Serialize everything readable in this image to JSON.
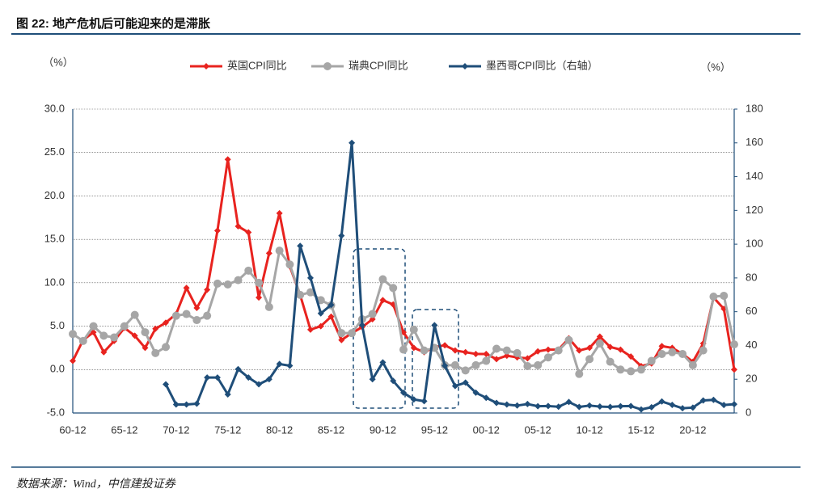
{
  "header": {
    "title": "图 22: 地产危机后可能迎来的是滞胀"
  },
  "footer": {
    "source": "数据来源：Wind，中信建投证券"
  },
  "chart_data": {
    "type": "line",
    "y_label": "（%）",
    "y2_label": "（%）",
    "categories": [
      "60-12",
      null,
      null,
      null,
      null,
      "65-12",
      null,
      null,
      null,
      null,
      "70-12",
      null,
      null,
      null,
      null,
      "75-12",
      null,
      null,
      null,
      null,
      "80-12",
      null,
      null,
      null,
      null,
      "85-12",
      null,
      null,
      null,
      null,
      "90-12",
      null,
      null,
      null,
      null,
      "95-12",
      null,
      null,
      null,
      null,
      "00-12",
      null,
      null,
      null,
      null,
      "05-12",
      null,
      null,
      null,
      null,
      "10-12",
      null,
      null,
      null,
      null,
      "15-12",
      null,
      null,
      null,
      null,
      "20-12",
      null,
      null,
      null,
      null
    ],
    "ylim": [
      -5,
      30
    ],
    "yticks": [
      {
        "value": -5,
        "label": "-5.0"
      },
      {
        "value": 0,
        "label": "0.0"
      },
      {
        "value": 5,
        "label": "5.0"
      },
      {
        "value": 10,
        "label": "10.0"
      },
      {
        "value": 15,
        "label": "15.0"
      },
      {
        "value": 20,
        "label": "20.0"
      },
      {
        "value": 25,
        "label": "25.0"
      },
      {
        "value": 30,
        "label": "30.0"
      }
    ],
    "y2lim": [
      0,
      180
    ],
    "y2ticks": [
      0,
      20,
      40,
      60,
      80,
      100,
      120,
      140,
      160,
      180
    ],
    "grid": true,
    "legend": "top",
    "series": [
      {
        "name": "英国CPI同比",
        "color": "#e8231f",
        "marker": "diamond",
        "values": [
          1.0,
          3.4,
          4.3,
          2.0,
          3.3,
          4.8,
          3.9,
          2.5,
          4.7,
          5.4,
          6.4,
          9.4,
          7.1,
          9.2,
          16.0,
          24.2,
          16.5,
          15.8,
          8.3,
          13.4,
          18.0,
          11.9,
          8.6,
          4.6,
          5.0,
          6.1,
          3.4,
          4.2,
          4.9,
          5.8,
          8.0,
          7.5,
          4.3,
          2.5,
          2.0,
          2.6,
          2.8,
          2.2,
          2.0,
          1.8,
          1.8,
          1.2,
          1.6,
          1.4,
          1.3,
          2.1,
          2.3,
          2.3,
          3.6,
          2.2,
          2.5,
          3.8,
          2.6,
          2.3,
          1.5,
          0.4,
          0.7,
          2.7,
          2.5,
          1.8,
          0.9,
          3.0,
          8.3,
          7.0,
          0.0
        ]
      },
      {
        "name": "瑞典CPI同比",
        "color": "#a6a6a6",
        "marker": "circle",
        "values": [
          4.1,
          3.3,
          5.0,
          3.9,
          3.7,
          5.0,
          6.3,
          4.3,
          1.9,
          2.6,
          6.2,
          6.4,
          5.7,
          6.2,
          9.9,
          9.8,
          10.3,
          11.4,
          10.0,
          7.2,
          13.7,
          12.1,
          8.6,
          8.9,
          8.0,
          7.4,
          4.2,
          4.2,
          5.8,
          6.4,
          10.4,
          9.4,
          2.3,
          4.6,
          2.2,
          2.5,
          0.5,
          0.5,
          -0.1,
          0.5,
          1.0,
          2.4,
          2.2,
          1.9,
          0.4,
          0.5,
          1.4,
          2.2,
          3.4,
          -0.5,
          1.2,
          3.0,
          0.9,
          0.0,
          -0.2,
          0.0,
          1.0,
          1.8,
          2.0,
          1.8,
          0.5,
          2.2,
          8.4,
          8.5,
          2.9
        ]
      },
      {
        "name": "墨西哥CPI同比（右轴）",
        "color": "#1f4e79",
        "marker": "diamond",
        "axis": "y2",
        "values": [
          null,
          null,
          null,
          null,
          null,
          null,
          null,
          null,
          null,
          17,
          5,
          5,
          5.5,
          21,
          21,
          11,
          26,
          21,
          17,
          20,
          29,
          28,
          99,
          80,
          59,
          64,
          105,
          160,
          52,
          20,
          30,
          19,
          12,
          8,
          7,
          52,
          28,
          16,
          18,
          12,
          9,
          6,
          5,
          4.4,
          5.3,
          4.0,
          4.1,
          3.7,
          6.5,
          3.6,
          4.4,
          3.8,
          3.6,
          4.0,
          4.1,
          2.1,
          3.4,
          6.8,
          4.8,
          2.8,
          3.2,
          7.4,
          7.8,
          4.7,
          5.2
        ]
      }
    ]
  }
}
